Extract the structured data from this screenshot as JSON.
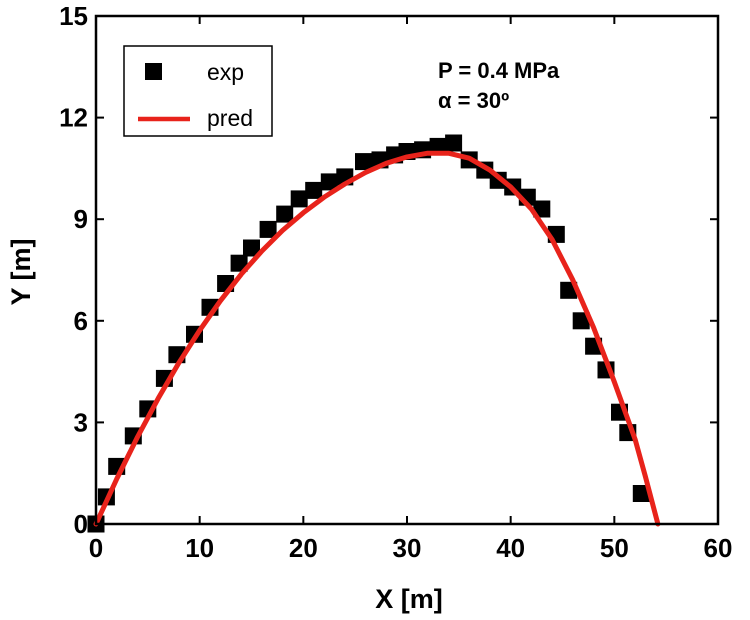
{
  "chart_data": {
    "type": "scatter",
    "title": "",
    "xlabel": "X [m]",
    "ylabel": "Y [m]",
    "xlim": [
      0,
      60
    ],
    "ylim": [
      0,
      15
    ],
    "xticks": [
      0,
      10,
      20,
      30,
      40,
      50,
      60
    ],
    "yticks": [
      0,
      3,
      6,
      9,
      12,
      15
    ],
    "xtick_labels": [
      "0",
      "10",
      "20",
      "30",
      "40",
      "50",
      "60"
    ],
    "ytick_labels": [
      "0",
      "3",
      "6",
      "9",
      "12",
      "15"
    ],
    "grid": false,
    "legend_position": "top-left",
    "annotations": [
      "P = 0.4 MPa",
      "α = 30º"
    ],
    "series": [
      {
        "name": "exp",
        "style": "square-markers",
        "color": "#000000",
        "points": [
          [
            0.0,
            0.0
          ],
          [
            1.0,
            0.8
          ],
          [
            2.0,
            1.7
          ],
          [
            3.6,
            2.6
          ],
          [
            5.0,
            3.4
          ],
          [
            6.6,
            4.3
          ],
          [
            7.8,
            5.0
          ],
          [
            9.5,
            5.6
          ],
          [
            11.0,
            6.4
          ],
          [
            12.5,
            7.1
          ],
          [
            13.8,
            7.7
          ],
          [
            15.0,
            8.15
          ],
          [
            16.6,
            8.7
          ],
          [
            18.2,
            9.15
          ],
          [
            19.6,
            9.6
          ],
          [
            21.0,
            9.85
          ],
          [
            22.5,
            10.1
          ],
          [
            24.0,
            10.25
          ],
          [
            25.8,
            10.7
          ],
          [
            27.4,
            10.75
          ],
          [
            28.8,
            10.9
          ],
          [
            30.0,
            11.0
          ],
          [
            31.5,
            11.05
          ],
          [
            33.0,
            11.15
          ],
          [
            34.5,
            11.25
          ],
          [
            36.0,
            10.75
          ],
          [
            37.5,
            10.45
          ],
          [
            38.8,
            10.15
          ],
          [
            40.2,
            9.95
          ],
          [
            41.6,
            9.65
          ],
          [
            43.0,
            9.3
          ],
          [
            44.4,
            8.55
          ],
          [
            45.6,
            6.9
          ],
          [
            46.8,
            6.0
          ],
          [
            48.0,
            5.25
          ],
          [
            49.2,
            4.55
          ],
          [
            50.5,
            3.3
          ],
          [
            51.3,
            2.7
          ],
          [
            52.6,
            0.9
          ]
        ]
      },
      {
        "name": "pred",
        "style": "line",
        "color": "#e8231b",
        "points": [
          [
            0,
            0
          ],
          [
            2,
            1.33
          ],
          [
            4,
            2.57
          ],
          [
            6,
            3.71
          ],
          [
            8,
            4.76
          ],
          [
            10,
            5.72
          ],
          [
            12,
            6.59
          ],
          [
            14,
            7.37
          ],
          [
            16,
            8.06
          ],
          [
            18,
            8.67
          ],
          [
            20,
            9.19
          ],
          [
            22,
            9.65
          ],
          [
            24,
            10.04
          ],
          [
            26,
            10.38
          ],
          [
            28,
            10.65
          ],
          [
            30,
            10.84
          ],
          [
            32,
            10.95
          ],
          [
            34,
            10.95
          ],
          [
            36,
            10.8
          ],
          [
            38,
            10.45
          ],
          [
            40,
            9.95
          ],
          [
            42,
            9.3
          ],
          [
            44,
            8.4
          ],
          [
            46,
            7.2
          ],
          [
            48,
            5.8
          ],
          [
            50,
            4.2
          ],
          [
            52,
            2.5
          ],
          [
            53,
            1.4
          ],
          [
            54.2,
            0.0
          ]
        ]
      }
    ]
  }
}
